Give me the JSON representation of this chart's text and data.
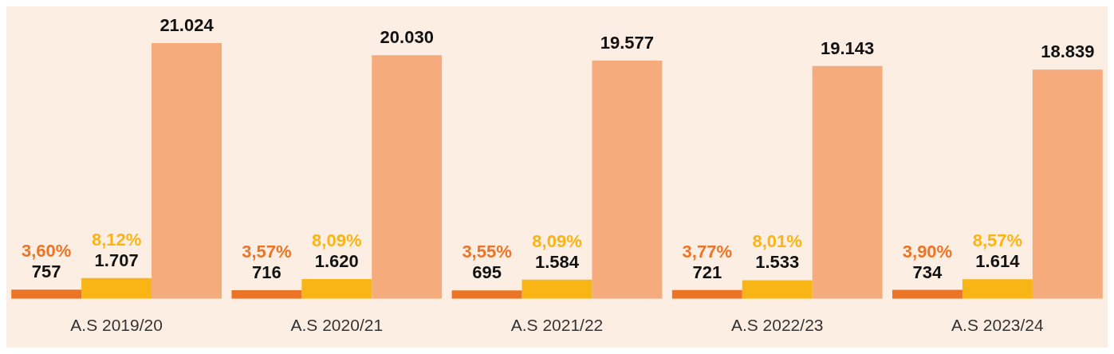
{
  "chart_data": {
    "type": "bar",
    "categories": [
      "A.S 2019/20",
      "A.S 2020/21",
      "A.S 2021/22",
      "A.S 2022/23",
      "A.S 2023/24"
    ],
    "series": [
      {
        "color": "#ec7426",
        "values": [
          757,
          716,
          695,
          721,
          734
        ],
        "value_labels": [
          "757",
          "716",
          "695",
          "721",
          "734"
        ]
      },
      {
        "color": "#f9b515",
        "values": [
          1707,
          1620,
          1584,
          1533,
          1614
        ],
        "value_labels": [
          "1.707",
          "1.620",
          "1.584",
          "1.533",
          "1.614"
        ]
      },
      {
        "color": "#f5ab7c",
        "values": [
          21024,
          20030,
          19577,
          19143,
          18839
        ],
        "value_labels": [
          "21.024",
          "20.030",
          "19.577",
          "19.143",
          "18.839"
        ]
      }
    ],
    "annotations": [
      "3,60%",
      "8,12%",
      "3,57%",
      "8,09%",
      "3,55%",
      "8,09%",
      "3,77%",
      "8,01%",
      "3,90%",
      "8,57%"
    ],
    "tick_labels": "x",
    "grid": false,
    "legend": false
  }
}
